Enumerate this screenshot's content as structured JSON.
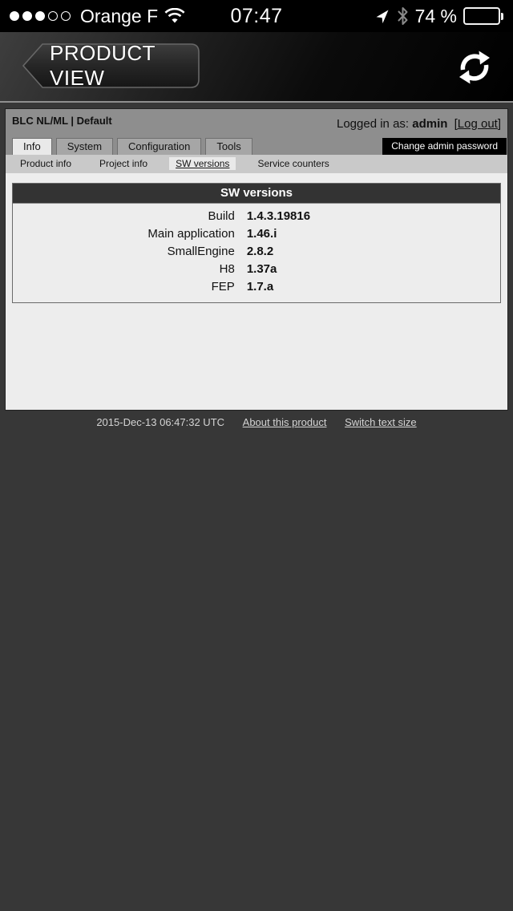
{
  "status_bar": {
    "carrier": "Orange F",
    "time": "07:47",
    "battery_percent": "74 %",
    "battery_level": 74,
    "signal": {
      "filled": 3,
      "total": 5
    },
    "icons": {
      "cellular": "signal-dots",
      "wifi": "wifi-icon",
      "location": "location-arrow-icon",
      "bluetooth": "bluetooth-icon",
      "battery": "battery-icon"
    }
  },
  "nav_bar": {
    "back_button_label": "PRODUCT VIEW",
    "refresh_icon": "refresh-icon"
  },
  "page": {
    "site_title": "BLC NL/ML | Default",
    "login": {
      "prefix": "Logged in as: ",
      "user": "admin",
      "logout": "[Log out]"
    },
    "change_password_button": "Change admin password",
    "tabs": [
      {
        "label": "Info",
        "active": true
      },
      {
        "label": "System",
        "active": false
      },
      {
        "label": "Configuration",
        "active": false
      },
      {
        "label": "Tools",
        "active": false
      }
    ],
    "subtabs": [
      {
        "label": "Product info",
        "active": false
      },
      {
        "label": "Project info",
        "active": false
      },
      {
        "label": "SW versions",
        "active": true
      },
      {
        "label": "Service counters",
        "active": false
      }
    ],
    "panel": {
      "title": "SW versions",
      "rows": [
        {
          "label": "Build",
          "value": "1.4.3.19816"
        },
        {
          "label": "Main application",
          "value": "1.46.i"
        },
        {
          "label": "SmallEngine",
          "value": "2.8.2"
        },
        {
          "label": "H8",
          "value": "1.37a"
        },
        {
          "label": "FEP",
          "value": "1.7.a"
        }
      ]
    },
    "footer": {
      "timestamp": "2015-Dec-13 06:47:32 UTC",
      "links": [
        "About this product",
        "Switch text size"
      ]
    }
  },
  "colors": {
    "status_bar_bg": "#000000",
    "nav_bar_dark": "#1a1a1a",
    "header_band": "#8e8e8e",
    "subtab_band": "#c9c9c9",
    "content_bg": "#ededed",
    "panel_header_bg": "#333333",
    "page_body_dark": "#373737",
    "button_black": "#000000",
    "text_light": "#d4d4d4"
  }
}
